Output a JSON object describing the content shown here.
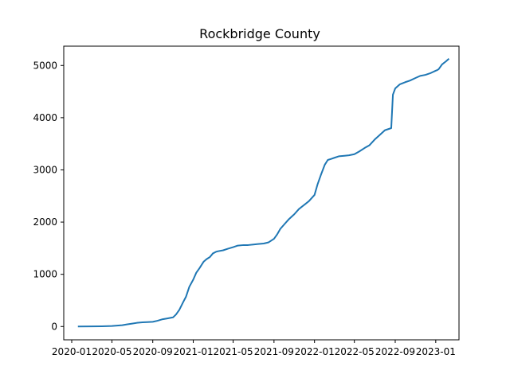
{
  "chart_data": {
    "type": "line",
    "title": "Rockbridge County",
    "xlabel": "",
    "ylabel": "",
    "x_type": "date",
    "xlim": [
      "2019-12-08",
      "2023-03-12"
    ],
    "ylim": [
      -255,
      5370
    ],
    "x_ticks": [
      "2020-01",
      "2020-05",
      "2020-09",
      "2021-01",
      "2021-05",
      "2021-09",
      "2022-01",
      "2022-05",
      "2022-09",
      "2023-01"
    ],
    "x_tick_labels": [
      "2020-01",
      "2020-05",
      "2020-09",
      "2021-01",
      "2021-05",
      "2021-09",
      "2022-01",
      "2022-05",
      "2022-09",
      "2023-01"
    ],
    "y_ticks": [
      0,
      1000,
      2000,
      3000,
      4000,
      5000
    ],
    "y_tick_labels": [
      "0",
      "1000",
      "2000",
      "3000",
      "4000",
      "5000"
    ],
    "grid": false,
    "legend": "none",
    "series": [
      {
        "color": "#1f77b4",
        "x": [
          "2020-01-22",
          "2020-03-01",
          "2020-04-01",
          "2020-05-01",
          "2020-06-01",
          "2020-06-15",
          "2020-07-01",
          "2020-07-15",
          "2020-08-01",
          "2020-08-15",
          "2020-09-01",
          "2020-09-15",
          "2020-10-01",
          "2020-10-15",
          "2020-11-01",
          "2020-11-10",
          "2020-11-20",
          "2020-12-01",
          "2020-12-10",
          "2020-12-20",
          "2021-01-01",
          "2021-01-10",
          "2021-01-20",
          "2021-02-01",
          "2021-02-10",
          "2021-02-20",
          "2021-03-01",
          "2021-03-10",
          "2021-03-15",
          "2021-04-01",
          "2021-04-15",
          "2021-05-01",
          "2021-05-15",
          "2021-06-01",
          "2021-06-15",
          "2021-07-01",
          "2021-07-15",
          "2021-08-01",
          "2021-08-15",
          "2021-09-01",
          "2021-09-10",
          "2021-09-20",
          "2021-10-01",
          "2021-10-15",
          "2021-11-01",
          "2021-11-15",
          "2021-12-01",
          "2021-12-15",
          "2022-01-01",
          "2022-01-10",
          "2022-01-20",
          "2022-02-01",
          "2022-02-10",
          "2022-02-20",
          "2022-03-01",
          "2022-03-15",
          "2022-04-01",
          "2022-04-15",
          "2022-05-01",
          "2022-05-15",
          "2022-06-01",
          "2022-06-15",
          "2022-07-01",
          "2022-07-15",
          "2022-08-01",
          "2022-08-20",
          "2022-08-25",
          "2022-09-01",
          "2022-09-15",
          "2022-10-01",
          "2022-10-15",
          "2022-11-01",
          "2022-11-15",
          "2022-12-01",
          "2022-12-15",
          "2023-01-01",
          "2023-01-05",
          "2023-01-10",
          "2023-01-20",
          "2023-02-01",
          "2023-02-08"
        ],
        "y": [
          0,
          2,
          5,
          10,
          25,
          40,
          55,
          70,
          80,
          85,
          90,
          110,
          140,
          155,
          175,
          230,
          320,
          460,
          570,
          760,
          900,
          1030,
          1120,
          1240,
          1290,
          1330,
          1400,
          1430,
          1440,
          1460,
          1490,
          1520,
          1550,
          1560,
          1560,
          1570,
          1580,
          1590,
          1610,
          1680,
          1760,
          1870,
          1950,
          2050,
          2150,
          2250,
          2330,
          2400,
          2520,
          2720,
          2900,
          3100,
          3190,
          3210,
          3230,
          3260,
          3270,
          3280,
          3300,
          3350,
          3420,
          3470,
          3580,
          3660,
          3760,
          3800,
          4440,
          4560,
          4640,
          4680,
          4710,
          4760,
          4800,
          4820,
          4850,
          4900,
          4910,
          4930,
          5020,
          5080,
          5120
        ]
      }
    ]
  }
}
